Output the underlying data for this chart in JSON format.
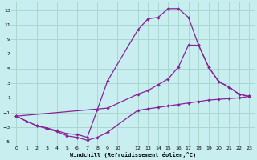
{
  "xlabel": "Windchill (Refroidissement éolien,°C)",
  "bg_color": "#c8eef0",
  "grid_color": "#a8d8d0",
  "line_color": "#882299",
  "xlim": [
    -0.5,
    23.5
  ],
  "ylim": [
    -5.5,
    14.0
  ],
  "xticks": [
    0,
    1,
    2,
    3,
    4,
    5,
    6,
    7,
    8,
    9,
    10,
    12,
    13,
    14,
    15,
    16,
    17,
    18,
    19,
    20,
    21,
    22,
    23
  ],
  "yticks": [
    -5,
    -3,
    -1,
    1,
    3,
    5,
    7,
    9,
    11,
    13
  ],
  "curve_top_x": [
    0,
    1,
    2,
    3,
    4,
    5,
    6,
    7,
    8,
    9,
    12,
    13,
    14,
    15,
    16,
    17,
    18,
    19,
    20,
    21,
    22,
    23
  ],
  "curve_top_y": [
    -1.5,
    -2.2,
    -2.8,
    -3.1,
    -3.5,
    -3.9,
    -4.0,
    -4.4,
    -0.6,
    3.3,
    10.3,
    11.8,
    12.0,
    13.2,
    13.2,
    12.0,
    8.2,
    5.2,
    3.2,
    2.5,
    1.5,
    1.2
  ],
  "curve_mid_x": [
    0,
    9,
    12,
    13,
    14,
    15,
    16,
    17,
    18,
    19,
    20,
    21,
    22,
    23
  ],
  "curve_mid_y": [
    -1.5,
    -0.4,
    1.5,
    2.0,
    2.8,
    3.6,
    5.2,
    8.2,
    8.2,
    5.2,
    3.2,
    2.5,
    1.5,
    1.2
  ],
  "curve_bot_x": [
    0,
    1,
    2,
    3,
    4,
    5,
    6,
    7,
    8,
    9,
    12,
    13,
    14,
    15,
    16,
    17,
    18,
    19,
    20,
    21,
    22,
    23
  ],
  "curve_bot_y": [
    -1.5,
    -2.2,
    -2.8,
    -3.2,
    -3.6,
    -4.2,
    -4.4,
    -4.8,
    -4.4,
    -3.7,
    -0.7,
    -0.5,
    -0.3,
    -0.1,
    0.1,
    0.3,
    0.5,
    0.7,
    0.8,
    0.9,
    1.0,
    1.2
  ]
}
